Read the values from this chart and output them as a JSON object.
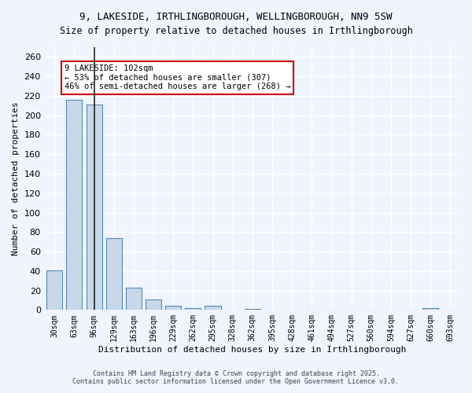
{
  "title_line1": "9, LAKESIDE, IRTHLINGBOROUGH, WELLINGBOROUGH, NN9 5SW",
  "title_line2": "Size of property relative to detached houses in Irthlingborough",
  "xlabel": "Distribution of detached houses by size in Irthlingborough",
  "ylabel": "Number of detached properties",
  "categories": [
    "30sqm",
    "63sqm",
    "96sqm",
    "129sqm",
    "163sqm",
    "196sqm",
    "229sqm",
    "262sqm",
    "295sqm",
    "328sqm",
    "362sqm",
    "395sqm",
    "428sqm",
    "461sqm",
    "494sqm",
    "527sqm",
    "560sqm",
    "594sqm",
    "627sqm",
    "660sqm",
    "693sqm"
  ],
  "values": [
    41,
    216,
    211,
    74,
    23,
    11,
    4,
    2,
    4,
    0,
    1,
    0,
    0,
    0,
    0,
    0,
    0,
    0,
    0,
    2,
    0
  ],
  "bar_color": "#c8d8e8",
  "bar_edge_color": "#5588bb",
  "vline_x_index": 2,
  "vline_color": "#222222",
  "annotation_text": "9 LAKESIDE: 102sqm\n← 53% of detached houses are smaller (307)\n46% of semi-detached houses are larger (268) →",
  "annotation_box_color": "#ffffff",
  "annotation_box_edge_color": "#cc0000",
  "ylim": [
    0,
    270
  ],
  "yticks": [
    0,
    20,
    40,
    60,
    80,
    100,
    120,
    140,
    160,
    180,
    200,
    220,
    240,
    260
  ],
  "background_color": "#f0f4ff",
  "grid_color": "#ffffff",
  "footer_line1": "Contains HM Land Registry data © Crown copyright and database right 2025.",
  "footer_line2": "Contains public sector information licensed under the Open Government Licence v3.0."
}
